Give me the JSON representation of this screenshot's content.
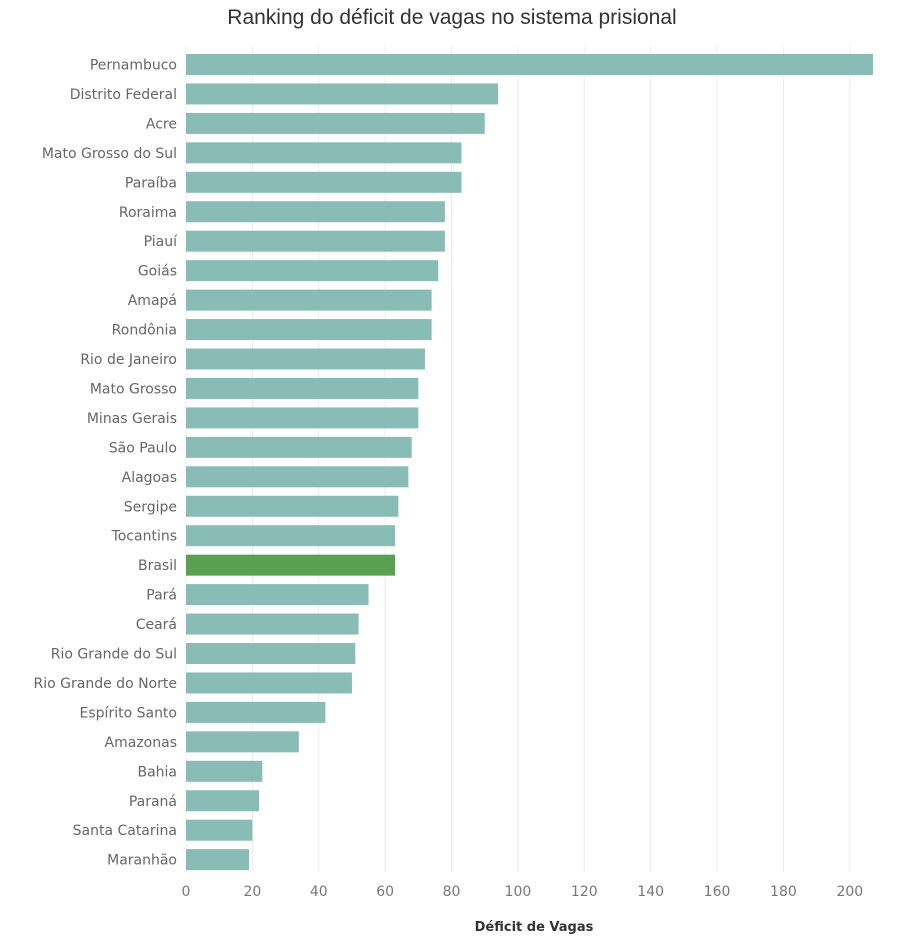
{
  "chart_data": {
    "type": "bar",
    "orientation": "horizontal",
    "title": "Ranking do déficit de vagas no sistema prisional",
    "xlabel": "Déficit de Vagas",
    "ylabel": "",
    "xlim": [
      0,
      210
    ],
    "xticks": [
      0,
      20,
      40,
      60,
      80,
      100,
      120,
      140,
      160,
      180,
      200
    ],
    "grid": "vertical",
    "bar_color": "#88bcb4",
    "highlight_color": "#5aa053",
    "highlight_category": "Brasil",
    "categories": [
      "Pernambuco",
      "Distrito Federal",
      "Acre",
      "Mato Grosso do Sul",
      "Paraíba",
      "Roraima",
      "Piauí",
      "Goiás",
      "Amapá",
      "Rondônia",
      "Rio de Janeiro",
      "Mato Grosso",
      "Minas Gerais",
      "São Paulo",
      "Alagoas",
      "Sergipe",
      "Tocantins",
      "Brasil",
      "Pará",
      "Ceará",
      "Rio Grande do Sul",
      "Rio Grande do Norte",
      "Espírito Santo",
      "Amazonas",
      "Bahia",
      "Paraná",
      "Santa Catarina",
      "Maranhão"
    ],
    "values": [
      207,
      94,
      90,
      83,
      83,
      78,
      78,
      76,
      74,
      74,
      72,
      70,
      70,
      68,
      67,
      64,
      63,
      63,
      55,
      52,
      51,
      50,
      42,
      34,
      23,
      22,
      20,
      19
    ]
  }
}
